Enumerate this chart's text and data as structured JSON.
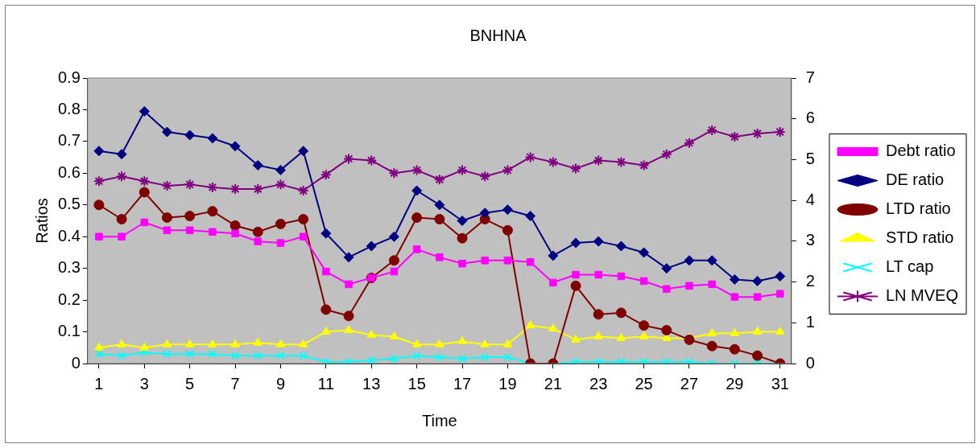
{
  "chart_data": {
    "type": "line",
    "title": "BNHNA",
    "xlabel": "Time",
    "ylabel": "Ratios",
    "x": [
      1,
      2,
      3,
      4,
      5,
      6,
      7,
      8,
      9,
      10,
      11,
      12,
      13,
      14,
      15,
      16,
      17,
      18,
      19,
      20,
      21,
      22,
      23,
      24,
      25,
      26,
      27,
      28,
      29,
      30,
      31
    ],
    "xlim": [
      0.5,
      31.5
    ],
    "xticks": [
      1,
      3,
      5,
      7,
      9,
      11,
      13,
      15,
      17,
      19,
      21,
      23,
      25,
      27,
      29,
      31
    ],
    "ylim": [
      0,
      0.9
    ],
    "yticks": [
      0,
      0.1,
      0.2,
      0.3,
      0.4,
      0.5,
      0.6,
      0.7,
      0.8,
      0.9
    ],
    "y2lim": [
      0,
      7
    ],
    "y2ticks": [
      0,
      1,
      2,
      3,
      4,
      5,
      6,
      7
    ],
    "grid": false,
    "legend": "right",
    "series": [
      {
        "name": "Debt ratio",
        "color": "#ff00ff",
        "marker": "square",
        "values": [
          0.4,
          0.4,
          0.445,
          0.42,
          0.42,
          0.415,
          0.41,
          0.385,
          0.38,
          0.4,
          0.29,
          0.25,
          0.27,
          0.29,
          0.36,
          0.335,
          0.315,
          0.325,
          0.325,
          0.32,
          0.255,
          0.28,
          0.28,
          0.275,
          0.26,
          0.235,
          0.245,
          0.25,
          0.21,
          0.21,
          0.22
        ]
      },
      {
        "name": "DE ratio",
        "color": "#000080",
        "marker": "diamond",
        "values": [
          0.67,
          0.66,
          0.795,
          0.73,
          0.72,
          0.71,
          0.685,
          0.625,
          0.61,
          0.67,
          0.41,
          0.335,
          0.37,
          0.4,
          0.545,
          0.5,
          0.45,
          0.475,
          0.485,
          0.465,
          0.34,
          0.38,
          0.385,
          0.37,
          0.35,
          0.3,
          0.325,
          0.325,
          0.265,
          0.26,
          0.275
        ]
      },
      {
        "name": "LTD ratio",
        "color": "#800000",
        "marker": "circle",
        "values": [
          0.5,
          0.455,
          0.54,
          0.46,
          0.465,
          0.48,
          0.435,
          0.415,
          0.44,
          0.455,
          0.17,
          0.15,
          0.27,
          0.325,
          0.46,
          0.455,
          0.395,
          0.455,
          0.42,
          0,
          0,
          0.245,
          0.155,
          0.16,
          0.12,
          0.105,
          0.075,
          0.055,
          0.045,
          0.025,
          0
        ]
      },
      {
        "name": "STD ratio",
        "color": "#ffff00",
        "marker": "triangle",
        "values": [
          0.05,
          0.06,
          0.05,
          0.06,
          0.06,
          0.06,
          0.06,
          0.065,
          0.06,
          0.06,
          0.1,
          0.105,
          0.09,
          0.085,
          0.06,
          0.06,
          0.07,
          0.06,
          0.06,
          0.12,
          0.11,
          0.075,
          0.085,
          0.08,
          0.085,
          0.08,
          0.08,
          0.095,
          0.095,
          0.1,
          0.1
        ]
      },
      {
        "name": "LT cap",
        "color": "#00ffff",
        "marker": "cross",
        "values": [
          0.03,
          0.025,
          0.035,
          0.03,
          0.03,
          0.03,
          0.025,
          0.025,
          0.025,
          0.025,
          0.005,
          0.005,
          0.01,
          0.015,
          0.025,
          0.02,
          0.015,
          0.02,
          0.02,
          0,
          0,
          0.005,
          0.005,
          0.005,
          0.005,
          0.005,
          0.005,
          0,
          0,
          0,
          0
        ]
      },
      {
        "name": "LN MVEQ",
        "color": "#800080",
        "marker": "cross",
        "axis": "y2",
        "values": [
          4.47,
          4.59,
          4.47,
          4.36,
          4.39,
          4.32,
          4.28,
          4.28,
          4.39,
          4.24,
          4.63,
          5.02,
          4.98,
          4.67,
          4.74,
          4.51,
          4.74,
          4.59,
          4.74,
          5.06,
          4.94,
          4.78,
          4.98,
          4.94,
          4.86,
          5.13,
          5.41,
          5.72,
          5.56,
          5.64,
          5.68
        ]
      }
    ]
  }
}
